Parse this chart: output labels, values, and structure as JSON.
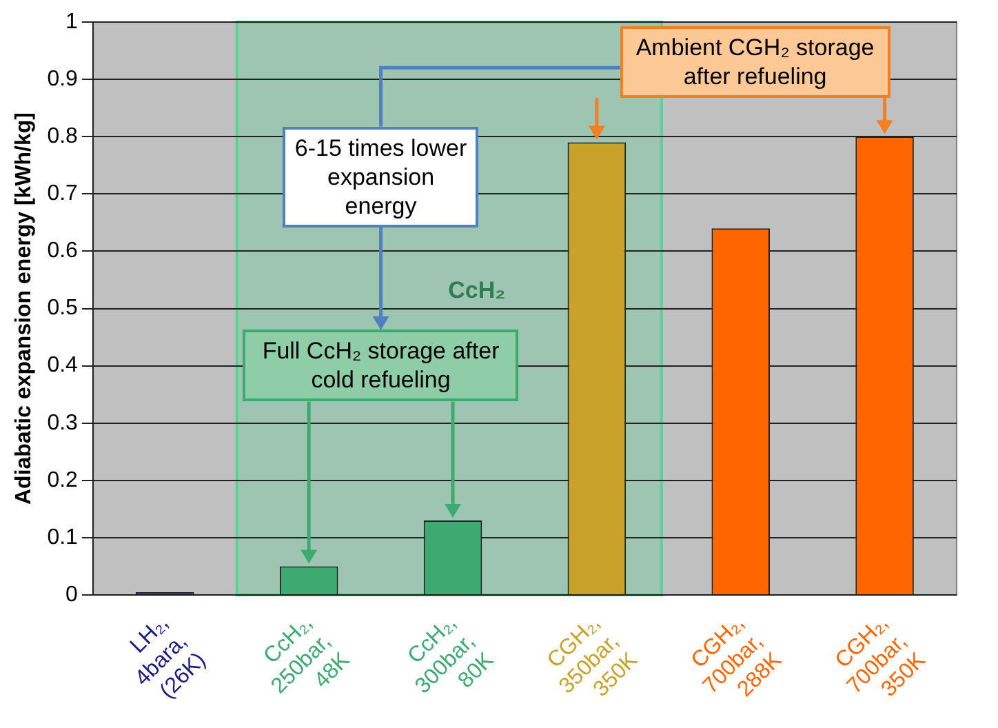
{
  "chart_data": {
    "type": "bar",
    "categories": [
      "LH₂, 4bara, (26K)",
      "CcH₂, 250bar, 48K",
      "CcH₂, 300bar, 80K",
      "CGH₂, 350bar, 350K",
      "CGH₂, 700bar, 288K",
      "CGH₂, 700bar, 350K"
    ],
    "values": [
      0.005,
      0.05,
      0.13,
      0.79,
      0.64,
      0.8
    ],
    "colors": [
      "#1c1c80",
      "#3daa72",
      "#3daa72",
      "#c9a22c",
      "#ff6600",
      "#ff6600"
    ],
    "ylabel": "Adiabatic expansion energy [kWh/kg]",
    "ylim": [
      0,
      1
    ],
    "yticks": [
      0,
      0.1,
      0.2,
      0.3,
      0.4,
      0.5,
      0.6,
      0.7,
      0.8,
      0.9,
      1
    ],
    "grid": "y",
    "legend": false,
    "bands": [
      {
        "axis": "x",
        "from": "CcH₂, 250bar, 48K",
        "to": "CGH₂, 350bar, 350K",
        "label": "CcH₂",
        "color": "#5fcf95"
      }
    ],
    "annotations": [
      "Ambient CGH₂ storage after refueling",
      "6-15 times lower expansion energy",
      "Full CcH₂ storage after cold refueling"
    ]
  }
}
